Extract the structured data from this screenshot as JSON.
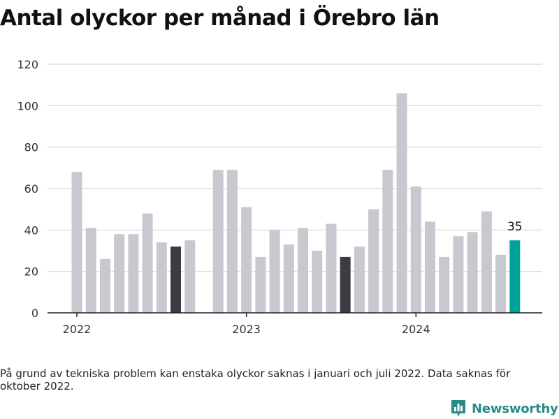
{
  "page": {
    "title": "Antal olyckor per månad i Örebro län",
    "footnote": "På grund av tekniska problem kan enstaka olyckor saknas i januari och juli 2022. Data saknas för oktober 2022.",
    "brand": "Newsworthy"
  },
  "colors": {
    "bar": "#c8c8d0",
    "highlight": "#3c3c46",
    "latest": "#00a39a",
    "grid": "#d8d8d8",
    "axis": "#222222",
    "tick_text": "#333333",
    "brand": "#2a8a85"
  },
  "icons": {
    "brand": "newsworthy-logo-icon"
  },
  "chart_data": {
    "type": "bar",
    "title": "Antal olyckor per månad i Örebro län",
    "xlabel": "",
    "ylabel": "",
    "ylim": [
      0,
      120
    ],
    "y_ticks": [
      0,
      20,
      40,
      60,
      80,
      100,
      120
    ],
    "grid": true,
    "legend": "none",
    "x_tick_labels": [
      "2022",
      "2023",
      "2024"
    ],
    "categories": [
      "2022-01",
      "2022-02",
      "2022-03",
      "2022-04",
      "2022-05",
      "2022-06",
      "2022-07",
      "2022-08",
      "2022-09",
      "2022-10",
      "2022-11",
      "2022-12",
      "2023-01",
      "2023-02",
      "2023-03",
      "2023-04",
      "2023-05",
      "2023-06",
      "2023-07",
      "2023-08",
      "2023-09",
      "2023-10",
      "2023-11",
      "2023-12",
      "2024-01",
      "2024-02",
      "2024-03",
      "2024-04",
      "2024-05",
      "2024-06",
      "2024-07",
      "2024-08"
    ],
    "values": [
      68,
      41,
      26,
      38,
      38,
      48,
      34,
      32,
      35,
      null,
      69,
      69,
      51,
      27,
      40,
      33,
      41,
      30,
      43,
      27,
      32,
      50,
      69,
      106,
      61,
      44,
      27,
      37,
      39,
      49,
      28,
      35
    ],
    "highlighted": [
      "2022-08",
      "2023-08"
    ],
    "latest": "2024-08",
    "data_labels": [
      {
        "category": "2024-08",
        "text": "35"
      }
    ]
  }
}
